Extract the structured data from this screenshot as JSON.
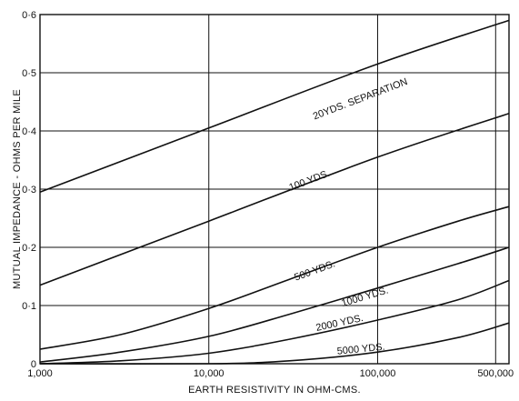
{
  "chart_data": {
    "type": "line",
    "title": "",
    "xlabel": "EARTH RESISTIVITY IN OHM-CMS.",
    "ylabel": "MUTUAL IMPEDANCE - OHMS PER MILE",
    "xscale": "log",
    "xlim": [
      1000,
      600000
    ],
    "ylim": [
      0,
      0.6
    ],
    "grid": true,
    "x_ticks": [
      {
        "value": 1000,
        "label": "1,000"
      },
      {
        "value": 10000,
        "label": "10,000"
      },
      {
        "value": 100000,
        "label": "100,000"
      },
      {
        "value": 500000,
        "label": "500,000"
      }
    ],
    "y_ticks": [
      {
        "value": 0,
        "label": "0"
      },
      {
        "value": 0.1,
        "label": "0·1"
      },
      {
        "value": 0.2,
        "label": "0·2"
      },
      {
        "value": 0.3,
        "label": "0·3"
      },
      {
        "value": 0.4,
        "label": "0·4"
      },
      {
        "value": 0.5,
        "label": "0·5"
      },
      {
        "value": 0.6,
        "label": "0·6"
      }
    ],
    "series": [
      {
        "name": "20 YDS. SEPARATION",
        "x": [
          1000,
          10000,
          100000,
          600000
        ],
        "y": [
          0.295,
          0.405,
          0.515,
          0.59
        ]
      },
      {
        "name": "100 YDS.",
        "x": [
          1000,
          10000,
          100000,
          600000
        ],
        "y": [
          0.135,
          0.245,
          0.355,
          0.43
        ]
      },
      {
        "name": "500 YDS.",
        "x": [
          1000,
          3000,
          10000,
          30000,
          100000,
          300000,
          600000
        ],
        "y": [
          0.025,
          0.05,
          0.095,
          0.145,
          0.2,
          0.245,
          0.27
        ]
      },
      {
        "name": "1000 YDS.",
        "x": [
          1000,
          3000,
          10000,
          30000,
          100000,
          300000,
          600000
        ],
        "y": [
          0.003,
          0.02,
          0.047,
          0.085,
          0.13,
          0.172,
          0.2
        ]
      },
      {
        "name": "2000 YDS.",
        "x": [
          1000,
          3000,
          10000,
          30000,
          100000,
          300000,
          600000
        ],
        "y": [
          0.0,
          0.005,
          0.018,
          0.042,
          0.075,
          0.11,
          0.143
        ]
      },
      {
        "name": "5000 YDS.",
        "x": [
          1000,
          10000,
          30000,
          100000,
          300000,
          600000
        ],
        "y": [
          0.0,
          0.0,
          0.005,
          0.02,
          0.045,
          0.07
        ]
      }
    ],
    "curve_labels": [
      {
        "text": "20YDS. SEPARATION",
        "x": 80000,
        "y": 0.45
      },
      {
        "text": "100 YDS.",
        "x": 40000,
        "y": 0.31
      },
      {
        "text": "500 YDS.",
        "x": 43000,
        "y": 0.155
      },
      {
        "text": "1000 YDS.",
        "x": 85000,
        "y": 0.11
      },
      {
        "text": "2000 YDS.",
        "x": 60000,
        "y": 0.065
      },
      {
        "text": "5000 YDS.",
        "x": 80000,
        "y": 0.02
      }
    ]
  }
}
